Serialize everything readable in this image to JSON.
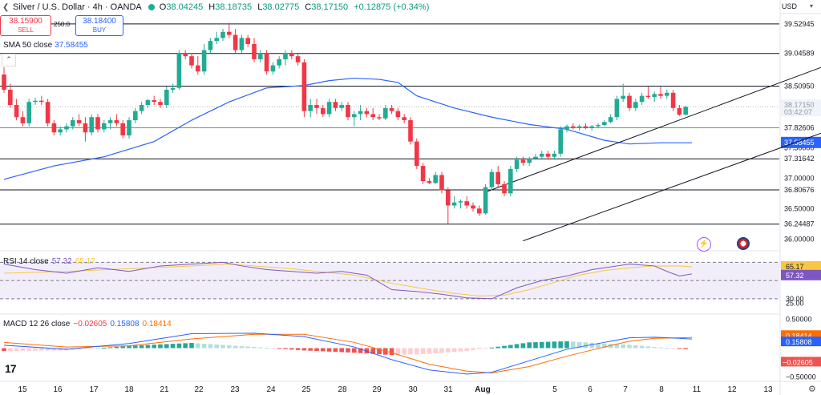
{
  "header": {
    "title": "Silver / U.S. Dollar · 4h · OANDA",
    "o_label": "O",
    "o": "38.04245",
    "h_label": "H",
    "h": "38.18735",
    "l_label": "L",
    "l": "38.02775",
    "c_label": "C",
    "c": "38.17150",
    "change": "+0.12875 (+0.34%)"
  },
  "trade": {
    "sell_price": "38.15900",
    "sell_label": "SELL",
    "spread": "250.0",
    "buy_price": "38.18400",
    "buy_label": "BUY"
  },
  "sma_label": {
    "name": "SMA 50 close",
    "value": "37.58455"
  },
  "rsi_label": {
    "name": "RSI 14 close",
    "rsi": "57.32",
    "ma": "65.17"
  },
  "macd_label": {
    "name": "MACD 12 26 close",
    "hist": "−0.02605",
    "macd": "0.15808",
    "signal": "0.18414"
  },
  "currency": "USD",
  "colors": {
    "up": "#22ab94",
    "down": "#f23645",
    "sma": "#2962ff",
    "rsi": "#7e57c2",
    "rsi_ma": "#f7c744",
    "macd": "#2962ff",
    "signal": "#ff6d00",
    "hist_up": "#26a69a",
    "hist_down": "#ef5350",
    "green_line": "#4caf50",
    "current": "#9598a1"
  },
  "chart_data": {
    "type": "candlestick",
    "timeframe": "4h",
    "price_ylim": [
      35.82,
      39.66
    ],
    "price_ticks": [
      36.0,
      36.5,
      37.0,
      37.5
    ],
    "price_tick_labels": [
      "36.00000",
      "36.50000",
      "37.00000",
      "37.50000"
    ],
    "x_tick_labels": [
      "15",
      "16",
      "17",
      "18",
      "21",
      "22",
      "23",
      "24",
      "25",
      "28",
      "29",
      "30",
      "31",
      "Aug",
      "5",
      "6",
      "7",
      "8",
      "11",
      "12",
      "13"
    ],
    "candles": [
      {
        "o": 38.7,
        "h": 38.82,
        "l": 38.4,
        "c": 38.45
      },
      {
        "o": 38.45,
        "h": 38.55,
        "l": 38.15,
        "c": 38.2
      },
      {
        "o": 38.2,
        "h": 38.3,
        "l": 37.95,
        "c": 38.0
      },
      {
        "o": 38.0,
        "h": 38.1,
        "l": 37.85,
        "c": 37.9
      },
      {
        "o": 37.9,
        "h": 38.3,
        "l": 37.85,
        "c": 38.25
      },
      {
        "o": 38.25,
        "h": 38.32,
        "l": 38.2,
        "c": 38.27
      },
      {
        "o": 38.27,
        "h": 38.35,
        "l": 38.2,
        "c": 38.25
      },
      {
        "o": 38.25,
        "h": 38.3,
        "l": 37.85,
        "c": 37.9
      },
      {
        "o": 37.9,
        "h": 37.95,
        "l": 37.7,
        "c": 37.75
      },
      {
        "o": 37.75,
        "h": 37.85,
        "l": 37.7,
        "c": 37.8
      },
      {
        "o": 37.8,
        "h": 37.9,
        "l": 37.75,
        "c": 37.85
      },
      {
        "o": 37.85,
        "h": 38.0,
        "l": 37.8,
        "c": 37.95
      },
      {
        "o": 37.95,
        "h": 38.05,
        "l": 37.85,
        "c": 37.9
      },
      {
        "o": 37.9,
        "h": 38.0,
        "l": 37.6,
        "c": 37.75
      },
      {
        "o": 37.75,
        "h": 38.05,
        "l": 37.7,
        "c": 38.0
      },
      {
        "o": 38.0,
        "h": 38.05,
        "l": 37.75,
        "c": 37.8
      },
      {
        "o": 37.8,
        "h": 37.95,
        "l": 37.75,
        "c": 37.9
      },
      {
        "o": 37.9,
        "h": 38.0,
        "l": 37.8,
        "c": 37.95
      },
      {
        "o": 37.95,
        "h": 38.05,
        "l": 37.85,
        "c": 37.9
      },
      {
        "o": 37.9,
        "h": 37.95,
        "l": 37.65,
        "c": 37.7
      },
      {
        "o": 37.7,
        "h": 38.0,
        "l": 37.65,
        "c": 37.95
      },
      {
        "o": 37.95,
        "h": 38.15,
        "l": 37.9,
        "c": 38.1
      },
      {
        "o": 38.1,
        "h": 38.25,
        "l": 38.05,
        "c": 38.2
      },
      {
        "o": 38.2,
        "h": 38.3,
        "l": 38.15,
        "c": 38.28
      },
      {
        "o": 38.28,
        "h": 38.35,
        "l": 38.2,
        "c": 38.25
      },
      {
        "o": 38.25,
        "h": 38.3,
        "l": 38.15,
        "c": 38.2
      },
      {
        "o": 38.2,
        "h": 38.5,
        "l": 38.15,
        "c": 38.45
      },
      {
        "o": 38.45,
        "h": 38.55,
        "l": 38.4,
        "c": 38.48
      },
      {
        "o": 38.48,
        "h": 39.1,
        "l": 38.45,
        "c": 39.05
      },
      {
        "o": 39.05,
        "h": 39.1,
        "l": 38.95,
        "c": 39.0
      },
      {
        "o": 39.0,
        "h": 39.05,
        "l": 38.8,
        "c": 38.85
      },
      {
        "o": 38.85,
        "h": 39.0,
        "l": 38.7,
        "c": 38.75
      },
      {
        "o": 38.75,
        "h": 39.2,
        "l": 38.7,
        "c": 39.1
      },
      {
        "o": 39.1,
        "h": 39.3,
        "l": 39.05,
        "c": 39.25
      },
      {
        "o": 39.25,
        "h": 39.4,
        "l": 39.2,
        "c": 39.3
      },
      {
        "o": 39.3,
        "h": 39.45,
        "l": 39.25,
        "c": 39.4
      },
      {
        "o": 39.4,
        "h": 39.55,
        "l": 39.3,
        "c": 39.35
      },
      {
        "o": 39.35,
        "h": 39.45,
        "l": 39.05,
        "c": 39.1
      },
      {
        "o": 39.1,
        "h": 39.35,
        "l": 39.05,
        "c": 39.3
      },
      {
        "o": 39.3,
        "h": 39.35,
        "l": 39.15,
        "c": 39.2
      },
      {
        "o": 39.2,
        "h": 39.3,
        "l": 38.9,
        "c": 38.95
      },
      {
        "o": 38.95,
        "h": 39.1,
        "l": 38.9,
        "c": 39.05
      },
      {
        "o": 39.05,
        "h": 39.1,
        "l": 38.7,
        "c": 38.75
      },
      {
        "o": 38.75,
        "h": 38.9,
        "l": 38.7,
        "c": 38.85
      },
      {
        "o": 38.85,
        "h": 39.0,
        "l": 38.8,
        "c": 38.95
      },
      {
        "o": 38.95,
        "h": 39.1,
        "l": 38.85,
        "c": 39.05
      },
      {
        "o": 39.05,
        "h": 39.1,
        "l": 38.95,
        "c": 39.0
      },
      {
        "o": 39.0,
        "h": 39.05,
        "l": 38.85,
        "c": 38.9
      },
      {
        "o": 38.9,
        "h": 38.95,
        "l": 38.0,
        "c": 38.1
      },
      {
        "o": 38.1,
        "h": 38.3,
        "l": 38.0,
        "c": 38.2
      },
      {
        "o": 38.2,
        "h": 38.3,
        "l": 38.05,
        "c": 38.15
      },
      {
        "o": 38.15,
        "h": 38.2,
        "l": 38.0,
        "c": 38.05
      },
      {
        "o": 38.05,
        "h": 38.3,
        "l": 38.0,
        "c": 38.25
      },
      {
        "o": 38.25,
        "h": 38.3,
        "l": 38.1,
        "c": 38.15
      },
      {
        "o": 38.15,
        "h": 38.25,
        "l": 38.1,
        "c": 38.2
      },
      {
        "o": 38.2,
        "h": 38.25,
        "l": 37.95,
        "c": 38.0
      },
      {
        "o": 38.0,
        "h": 38.1,
        "l": 37.85,
        "c": 38.05
      },
      {
        "o": 38.05,
        "h": 38.2,
        "l": 37.95,
        "c": 38.1
      },
      {
        "o": 38.1,
        "h": 38.15,
        "l": 38.0,
        "c": 38.05
      },
      {
        "o": 38.05,
        "h": 38.15,
        "l": 37.95,
        "c": 38.0
      },
      {
        "o": 38.0,
        "h": 38.05,
        "l": 37.95,
        "c": 37.98
      },
      {
        "o": 37.98,
        "h": 38.2,
        "l": 37.95,
        "c": 38.15
      },
      {
        "o": 38.15,
        "h": 38.2,
        "l": 38.05,
        "c": 38.1
      },
      {
        "o": 38.1,
        "h": 38.15,
        "l": 37.95,
        "c": 38.0
      },
      {
        "o": 38.0,
        "h": 38.05,
        "l": 37.9,
        "c": 37.95
      },
      {
        "o": 37.95,
        "h": 38.0,
        "l": 37.55,
        "c": 37.6
      },
      {
        "o": 37.6,
        "h": 37.65,
        "l": 37.15,
        "c": 37.2
      },
      {
        "o": 37.2,
        "h": 37.25,
        "l": 36.9,
        "c": 36.95
      },
      {
        "o": 36.95,
        "h": 37.0,
        "l": 36.9,
        "c": 36.92
      },
      {
        "o": 36.92,
        "h": 37.1,
        "l": 36.9,
        "c": 37.05
      },
      {
        "o": 37.05,
        "h": 37.1,
        "l": 36.75,
        "c": 36.8
      },
      {
        "o": 36.8,
        "h": 36.85,
        "l": 36.25,
        "c": 36.55
      },
      {
        "o": 36.55,
        "h": 36.7,
        "l": 36.5,
        "c": 36.6
      },
      {
        "o": 36.6,
        "h": 36.65,
        "l": 36.5,
        "c": 36.62
      },
      {
        "o": 36.62,
        "h": 36.7,
        "l": 36.5,
        "c": 36.55
      },
      {
        "o": 36.55,
        "h": 36.6,
        "l": 36.45,
        "c": 36.5
      },
      {
        "o": 36.5,
        "h": 36.55,
        "l": 36.38,
        "c": 36.42
      },
      {
        "o": 36.42,
        "h": 36.9,
        "l": 36.4,
        "c": 36.85
      },
      {
        "o": 36.85,
        "h": 37.15,
        "l": 36.8,
        "c": 37.1
      },
      {
        "o": 37.1,
        "h": 37.2,
        "l": 36.85,
        "c": 36.9
      },
      {
        "o": 36.9,
        "h": 36.95,
        "l": 36.7,
        "c": 36.75
      },
      {
        "o": 36.75,
        "h": 37.2,
        "l": 36.7,
        "c": 37.15
      },
      {
        "o": 37.15,
        "h": 37.35,
        "l": 37.1,
        "c": 37.3
      },
      {
        "o": 37.3,
        "h": 37.35,
        "l": 37.2,
        "c": 37.25
      },
      {
        "o": 37.25,
        "h": 37.35,
        "l": 37.2,
        "c": 37.32
      },
      {
        "o": 37.32,
        "h": 37.4,
        "l": 37.3,
        "c": 37.35
      },
      {
        "o": 37.35,
        "h": 37.45,
        "l": 37.3,
        "c": 37.4
      },
      {
        "o": 37.4,
        "h": 37.45,
        "l": 37.3,
        "c": 37.35
      },
      {
        "o": 37.35,
        "h": 37.45,
        "l": 37.3,
        "c": 37.4
      },
      {
        "o": 37.4,
        "h": 37.85,
        "l": 37.35,
        "c": 37.8
      },
      {
        "o": 37.8,
        "h": 37.88,
        "l": 37.75,
        "c": 37.85
      },
      {
        "o": 37.85,
        "h": 37.9,
        "l": 37.8,
        "c": 37.83
      },
      {
        "o": 37.83,
        "h": 37.88,
        "l": 37.78,
        "c": 37.85
      },
      {
        "o": 37.85,
        "h": 37.9,
        "l": 37.8,
        "c": 37.82
      },
      {
        "o": 37.82,
        "h": 37.87,
        "l": 37.78,
        "c": 37.85
      },
      {
        "o": 37.85,
        "h": 37.9,
        "l": 37.82,
        "c": 37.87
      },
      {
        "o": 37.87,
        "h": 37.95,
        "l": 37.85,
        "c": 37.92
      },
      {
        "o": 37.92,
        "h": 38.05,
        "l": 37.9,
        "c": 38.0
      },
      {
        "o": 38.0,
        "h": 38.35,
        "l": 37.95,
        "c": 38.3
      },
      {
        "o": 38.3,
        "h": 38.55,
        "l": 38.25,
        "c": 38.35
      },
      {
        "o": 38.35,
        "h": 38.4,
        "l": 38.1,
        "c": 38.15
      },
      {
        "o": 38.15,
        "h": 38.3,
        "l": 38.1,
        "c": 38.25
      },
      {
        "o": 38.25,
        "h": 38.4,
        "l": 38.2,
        "c": 38.35
      },
      {
        "o": 38.35,
        "h": 38.5,
        "l": 38.3,
        "c": 38.33
      },
      {
        "o": 38.33,
        "h": 38.42,
        "l": 38.25,
        "c": 38.38
      },
      {
        "o": 38.38,
        "h": 38.5,
        "l": 38.3,
        "c": 38.35
      },
      {
        "o": 38.35,
        "h": 38.45,
        "l": 38.3,
        "c": 38.4
      },
      {
        "o": 38.4,
        "h": 38.45,
        "l": 38.1,
        "c": 38.15
      },
      {
        "o": 38.15,
        "h": 38.2,
        "l": 38.02,
        "c": 38.04
      },
      {
        "o": 38.04,
        "h": 38.19,
        "l": 38.03,
        "c": 38.17
      }
    ],
    "sma50": {
      "name": "SMA 50 close",
      "value": 37.58455,
      "points": [
        [
          0,
          36.98
        ],
        [
          8,
          37.2
        ],
        [
          16,
          37.35
        ],
        [
          24,
          37.6
        ],
        [
          30,
          37.95
        ],
        [
          36,
          38.25
        ],
        [
          42,
          38.48
        ],
        [
          48,
          38.52
        ],
        [
          52,
          38.6
        ],
        [
          56,
          38.64
        ],
        [
          60,
          38.62
        ],
        [
          63,
          38.57
        ],
        [
          66,
          38.35
        ],
        [
          72,
          38.15
        ],
        [
          78,
          38.0
        ],
        [
          84,
          37.88
        ],
        [
          90,
          37.8
        ],
        [
          96,
          37.62
        ],
        [
          100,
          37.56
        ],
        [
          105,
          37.58
        ],
        [
          110,
          37.58
        ]
      ]
    },
    "horizontal_levels": [
      39.52945,
      39.04589,
      38.5095,
      37.31642,
      36.80676,
      36.24487
    ],
    "support_line": {
      "value": 37.82606,
      "label": "37.82606"
    },
    "current_price": {
      "value": 38.1715,
      "label": "38.17150",
      "countdown": "03:42:07"
    },
    "sma_price_label": "37.58455",
    "channel_upper": [
      [
        77,
        36.77
      ],
      [
        142,
        39.25
      ]
    ],
    "channel_lower": [
      [
        83,
        35.97
      ],
      [
        148,
        38.38
      ]
    ],
    "rsi": {
      "name": "RSI 14 close",
      "value": 57.32,
      "ma_value": 65.17,
      "ylim": [
        15,
        80
      ],
      "levels": [
        70,
        50,
        30
      ],
      "tick_labels": [
        "25.00",
        "30.00"
      ],
      "tick_values": [
        25,
        30
      ],
      "rsi_points": [
        [
          0,
          68
        ],
        [
          5,
          62
        ],
        [
          10,
          58
        ],
        [
          15,
          64
        ],
        [
          20,
          60
        ],
        [
          25,
          66
        ],
        [
          30,
          68
        ],
        [
          35,
          70
        ],
        [
          38,
          66
        ],
        [
          42,
          62
        ],
        [
          46,
          60
        ],
        [
          50,
          58
        ],
        [
          54,
          60
        ],
        [
          58,
          56
        ],
        [
          62,
          40
        ],
        [
          66,
          38
        ],
        [
          70,
          35
        ],
        [
          72,
          33
        ],
        [
          74,
          31
        ],
        [
          78,
          30
        ],
        [
          82,
          42
        ],
        [
          86,
          50
        ],
        [
          90,
          55
        ],
        [
          94,
          62
        ],
        [
          98,
          66
        ],
        [
          100,
          68
        ],
        [
          104,
          66
        ],
        [
          106,
          60
        ],
        [
          108,
          55
        ],
        [
          110,
          57.32
        ]
      ],
      "ma_points": [
        [
          0,
          58
        ],
        [
          10,
          60
        ],
        [
          20,
          63
        ],
        [
          30,
          66
        ],
        [
          36,
          68
        ],
        [
          40,
          66
        ],
        [
          46,
          63
        ],
        [
          50,
          60
        ],
        [
          56,
          56
        ],
        [
          62,
          47
        ],
        [
          68,
          40
        ],
        [
          72,
          36
        ],
        [
          76,
          33
        ],
        [
          80,
          34
        ],
        [
          84,
          40
        ],
        [
          88,
          48
        ],
        [
          92,
          56
        ],
        [
          96,
          61
        ],
        [
          100,
          64
        ],
        [
          104,
          66
        ],
        [
          108,
          66
        ],
        [
          110,
          65.17
        ]
      ]
    },
    "macd": {
      "name": "MACD 12 26 close",
      "hist": -0.02605,
      "macd": 0.15808,
      "signal": 0.18414,
      "ylim": [
        -0.55,
        0.55
      ],
      "tick_values": [
        0.5,
        -0.5
      ],
      "tick_labels": [
        "0.50000",
        "−0.50000"
      ],
      "macd_points": [
        [
          0,
          0.05
        ],
        [
          10,
          -0.02
        ],
        [
          20,
          0.08
        ],
        [
          30,
          0.25
        ],
        [
          40,
          0.26
        ],
        [
          48,
          0.2
        ],
        [
          56,
          0.02
        ],
        [
          62,
          -0.2
        ],
        [
          68,
          -0.38
        ],
        [
          74,
          -0.45
        ],
        [
          78,
          -0.42
        ],
        [
          84,
          -0.22
        ],
        [
          90,
          -0.02
        ],
        [
          96,
          0.1
        ],
        [
          100,
          0.18
        ],
        [
          104,
          0.19
        ],
        [
          108,
          0.17
        ],
        [
          110,
          0.158
        ]
      ],
      "signal_points": [
        [
          0,
          0.1
        ],
        [
          10,
          0.02
        ],
        [
          20,
          0.04
        ],
        [
          30,
          0.16
        ],
        [
          40,
          0.24
        ],
        [
          48,
          0.24
        ],
        [
          56,
          0.1
        ],
        [
          62,
          -0.08
        ],
        [
          68,
          -0.28
        ],
        [
          74,
          -0.4
        ],
        [
          78,
          -0.43
        ],
        [
          84,
          -0.32
        ],
        [
          90,
          -0.14
        ],
        [
          96,
          0.02
        ],
        [
          100,
          0.12
        ],
        [
          104,
          0.17
        ],
        [
          108,
          0.18
        ],
        [
          110,
          0.184
        ]
      ]
    },
    "price_axis_labels": {
      "rsi_ma": "65.17",
      "rsi": "57.32",
      "macd_signal": "0.18414",
      "macd": "0.15808",
      "macd_hist": "−0.02605"
    }
  }
}
